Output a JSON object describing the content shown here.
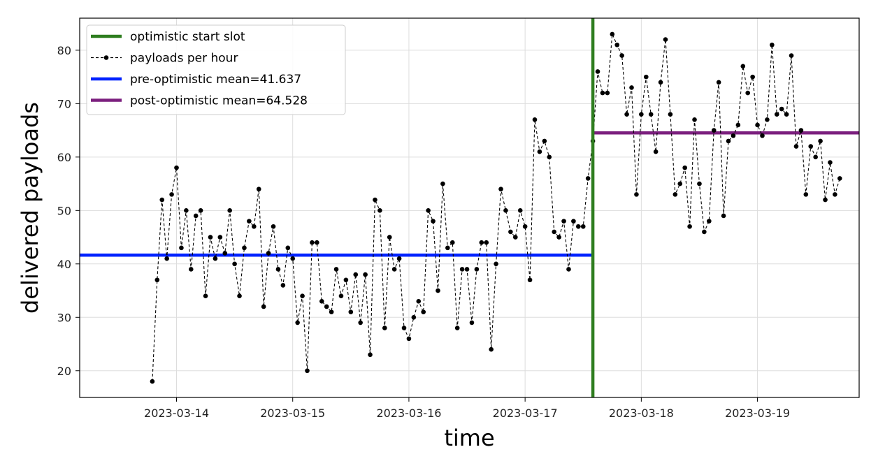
{
  "chart_data": {
    "type": "line",
    "xlabel": "time",
    "ylabel": "delivered payloads",
    "xlim": [
      "2023-03-13T04:00",
      "2023-03-19T21:00"
    ],
    "ylim": [
      15,
      86
    ],
    "x_ticks": [
      "2023-03-14",
      "2023-03-15",
      "2023-03-16",
      "2023-03-17",
      "2023-03-18",
      "2023-03-19"
    ],
    "y_ticks": [
      20,
      30,
      40,
      50,
      60,
      70,
      80
    ],
    "grid": true,
    "legend_position": "top-left",
    "series": [
      {
        "name": "payloads per hour",
        "color": "#000000",
        "x": [
          "2023-03-13T19:00",
          "2023-03-13T20:00",
          "2023-03-13T21:00",
          "2023-03-13T22:00",
          "2023-03-13T23:00",
          "2023-03-14T00:00",
          "2023-03-14T01:00",
          "2023-03-14T02:00",
          "2023-03-14T03:00",
          "2023-03-14T04:00",
          "2023-03-14T05:00",
          "2023-03-14T06:00",
          "2023-03-14T07:00",
          "2023-03-14T08:00",
          "2023-03-14T09:00",
          "2023-03-14T10:00",
          "2023-03-14T11:00",
          "2023-03-14T12:00",
          "2023-03-14T13:00",
          "2023-03-14T14:00",
          "2023-03-14T15:00",
          "2023-03-14T16:00",
          "2023-03-14T17:00",
          "2023-03-14T18:00",
          "2023-03-14T19:00",
          "2023-03-14T20:00",
          "2023-03-14T21:00",
          "2023-03-14T22:00",
          "2023-03-14T23:00",
          "2023-03-15T00:00",
          "2023-03-15T01:00",
          "2023-03-15T02:00",
          "2023-03-15T03:00",
          "2023-03-15T04:00",
          "2023-03-15T05:00",
          "2023-03-15T06:00",
          "2023-03-15T07:00",
          "2023-03-15T08:00",
          "2023-03-15T09:00",
          "2023-03-15T10:00",
          "2023-03-15T11:00",
          "2023-03-15T12:00",
          "2023-03-15T13:00",
          "2023-03-15T14:00",
          "2023-03-15T15:00",
          "2023-03-15T16:00",
          "2023-03-15T17:00",
          "2023-03-15T18:00",
          "2023-03-15T19:00",
          "2023-03-15T20:00",
          "2023-03-15T21:00",
          "2023-03-15T22:00",
          "2023-03-15T23:00",
          "2023-03-16T00:00",
          "2023-03-16T01:00",
          "2023-03-16T02:00",
          "2023-03-16T03:00",
          "2023-03-16T04:00",
          "2023-03-16T05:00",
          "2023-03-16T06:00",
          "2023-03-16T07:00",
          "2023-03-16T08:00",
          "2023-03-16T09:00",
          "2023-03-16T10:00",
          "2023-03-16T11:00",
          "2023-03-16T12:00",
          "2023-03-16T13:00",
          "2023-03-16T14:00",
          "2023-03-16T15:00",
          "2023-03-16T16:00",
          "2023-03-16T17:00",
          "2023-03-16T18:00",
          "2023-03-16T19:00",
          "2023-03-16T20:00",
          "2023-03-16T21:00",
          "2023-03-16T22:00",
          "2023-03-16T23:00",
          "2023-03-17T00:00",
          "2023-03-17T01:00",
          "2023-03-17T02:00",
          "2023-03-17T03:00",
          "2023-03-17T04:00",
          "2023-03-17T05:00",
          "2023-03-17T06:00",
          "2023-03-17T07:00",
          "2023-03-17T08:00",
          "2023-03-17T09:00",
          "2023-03-17T10:00",
          "2023-03-17T11:00",
          "2023-03-17T12:00",
          "2023-03-17T13:00",
          "2023-03-17T14:00",
          "2023-03-17T15:00",
          "2023-03-17T16:00",
          "2023-03-17T17:00",
          "2023-03-17T18:00",
          "2023-03-17T19:00",
          "2023-03-17T20:00",
          "2023-03-17T21:00",
          "2023-03-17T22:00",
          "2023-03-17T23:00",
          "2023-03-18T00:00",
          "2023-03-18T01:00",
          "2023-03-18T02:00",
          "2023-03-18T03:00",
          "2023-03-18T04:00",
          "2023-03-18T05:00",
          "2023-03-18T06:00",
          "2023-03-18T07:00",
          "2023-03-18T08:00",
          "2023-03-18T09:00",
          "2023-03-18T10:00",
          "2023-03-18T11:00",
          "2023-03-18T12:00",
          "2023-03-18T13:00",
          "2023-03-18T14:00",
          "2023-03-18T15:00",
          "2023-03-18T16:00",
          "2023-03-18T17:00",
          "2023-03-18T18:00",
          "2023-03-18T19:00",
          "2023-03-18T20:00",
          "2023-03-18T21:00",
          "2023-03-18T22:00",
          "2023-03-18T23:00",
          "2023-03-19T00:00",
          "2023-03-19T01:00",
          "2023-03-19T02:00",
          "2023-03-19T03:00",
          "2023-03-19T04:00",
          "2023-03-19T05:00",
          "2023-03-19T06:00",
          "2023-03-19T07:00",
          "2023-03-19T08:00",
          "2023-03-19T09:00",
          "2023-03-19T10:00",
          "2023-03-19T11:00",
          "2023-03-19T12:00",
          "2023-03-19T13:00",
          "2023-03-19T14:00",
          "2023-03-19T15:00",
          "2023-03-19T16:00",
          "2023-03-19T17:00"
        ],
        "y": [
          18,
          37,
          52,
          41,
          53,
          58,
          43,
          50,
          39,
          49,
          50,
          34,
          45,
          41,
          45,
          42,
          50,
          40,
          34,
          43,
          48,
          47,
          54,
          32,
          42,
          47,
          39,
          36,
          43,
          41,
          29,
          34,
          20,
          44,
          44,
          33,
          32,
          31,
          39,
          34,
          37,
          31,
          38,
          29,
          38,
          23,
          52,
          50,
          28,
          45,
          39,
          41,
          28,
          26,
          30,
          33,
          31,
          50,
          48,
          35,
          55,
          43,
          44,
          28,
          39,
          39,
          29,
          39,
          44,
          44,
          24,
          40,
          54,
          50,
          46,
          45,
          50,
          47,
          37,
          67,
          61,
          63,
          60,
          46,
          45,
          48,
          39,
          48,
          47,
          47,
          56,
          63,
          76,
          72,
          72,
          83,
          81,
          79,
          68,
          73,
          53,
          68,
          75,
          68,
          61,
          74,
          82,
          68,
          53,
          55,
          58,
          47,
          67,
          55,
          46,
          48,
          65,
          74,
          49,
          63,
          64,
          66,
          77,
          72,
          75,
          66,
          64,
          67,
          81,
          68,
          69,
          68,
          79,
          62,
          65,
          53,
          62,
          60,
          63,
          52,
          59,
          53,
          56
        ]
      },
      {
        "name": "pre-optimistic mean=41.637",
        "color": "#0022ff",
        "x": [
          "2023-03-13T04:00",
          "2023-03-17T14:00"
        ],
        "y": [
          41.637,
          41.637
        ]
      },
      {
        "name": "post-optimistic mean=64.528",
        "color": "#7b1f7e",
        "x": [
          "2023-03-17T14:00",
          "2023-03-19T21:00"
        ],
        "y": [
          64.528,
          64.528
        ]
      }
    ],
    "vlines": [
      {
        "name": "optimistic start slot",
        "x": "2023-03-17T14:00",
        "color": "#2e7d1f"
      }
    ],
    "legend": [
      {
        "label": "optimistic start slot",
        "kind": "line",
        "color": "#2e7d1f"
      },
      {
        "label": "payloads per hour",
        "kind": "dashed-marker",
        "color": "#000000"
      },
      {
        "label": "pre-optimistic mean=41.637",
        "kind": "line",
        "color": "#0022ff"
      },
      {
        "label": "post-optimistic mean=64.528",
        "kind": "line",
        "color": "#7b1f7e"
      }
    ]
  }
}
